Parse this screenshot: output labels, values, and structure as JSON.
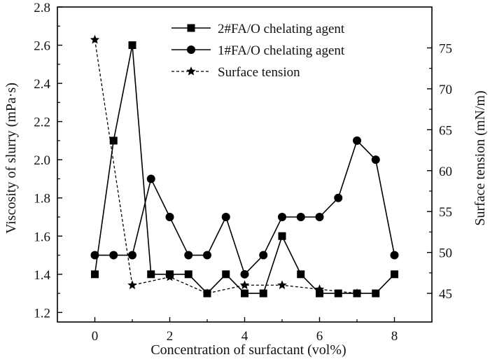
{
  "chart_data": {
    "type": "line",
    "x_axis": {
      "label": "Concentration of surfactant (vol%)",
      "range": [
        -1,
        9
      ],
      "ticks": [
        0,
        2,
        4,
        6,
        8
      ]
    },
    "y_axis_left": {
      "label": "Viscosity of slurry (mPa·s)",
      "range": [
        1.15,
        2.8
      ],
      "ticks": [
        1.2,
        1.4,
        1.6,
        1.8,
        2.0,
        2.2,
        2.4,
        2.6,
        2.8
      ]
    },
    "y_axis_right": {
      "label": "Surface tension (mN/m)",
      "range": [
        41.5,
        80
      ],
      "ticks": [
        45,
        50,
        55,
        60,
        65,
        70,
        75
      ]
    },
    "legend_position": "top-right",
    "grid": false,
    "series": [
      {
        "name": "2#FA/O chelating agent",
        "axis": "left",
        "marker": "square",
        "line": "solid",
        "color": "#000000",
        "x": [
          0,
          0.5,
          1,
          1.5,
          2,
          2.5,
          3,
          3.5,
          4,
          4.5,
          5,
          5.5,
          6,
          6.5,
          7,
          7.5,
          8
        ],
        "y": [
          1.4,
          2.1,
          2.6,
          1.4,
          1.4,
          1.4,
          1.3,
          1.4,
          1.3,
          1.3,
          1.6,
          1.4,
          1.3,
          1.3,
          1.3,
          1.3,
          1.4
        ]
      },
      {
        "name": "1#FA/O chelating agent",
        "axis": "left",
        "marker": "circle",
        "line": "solid",
        "color": "#000000",
        "x": [
          0,
          0.5,
          1,
          1.5,
          2,
          2.5,
          3,
          3.5,
          4,
          4.5,
          5,
          5.5,
          6,
          6.5,
          7,
          7.5,
          8
        ],
        "y": [
          1.5,
          1.5,
          1.5,
          1.9,
          1.7,
          1.5,
          1.5,
          1.7,
          1.4,
          1.5,
          1.7,
          1.7,
          1.7,
          1.8,
          2.1,
          2.0,
          1.5
        ]
      },
      {
        "name": "Surface tension",
        "axis": "right",
        "marker": "star",
        "line": "dashed",
        "color": "#000000",
        "x": [
          0,
          1,
          2,
          3,
          4,
          5,
          6,
          7
        ],
        "y": [
          76,
          46,
          47,
          45,
          46,
          46,
          45.5,
          45
        ]
      }
    ]
  }
}
